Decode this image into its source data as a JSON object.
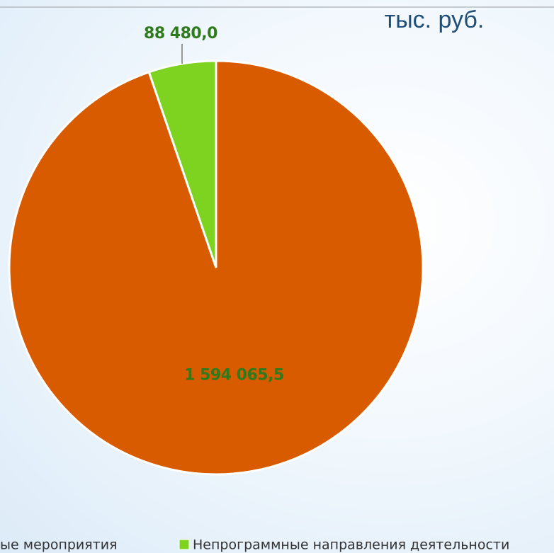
{
  "chart_data": {
    "type": "pie",
    "subtitle": "тыс. руб.",
    "categories": [
      "ые мероприятия",
      "Непрограммные направления деятельности"
    ],
    "values": [
      1594065.5,
      88480.0
    ],
    "value_labels": [
      "1 594 065,5",
      "88 480,0"
    ],
    "colors": [
      "#d95b00",
      "#7ed321"
    ],
    "legend": "bottom"
  }
}
